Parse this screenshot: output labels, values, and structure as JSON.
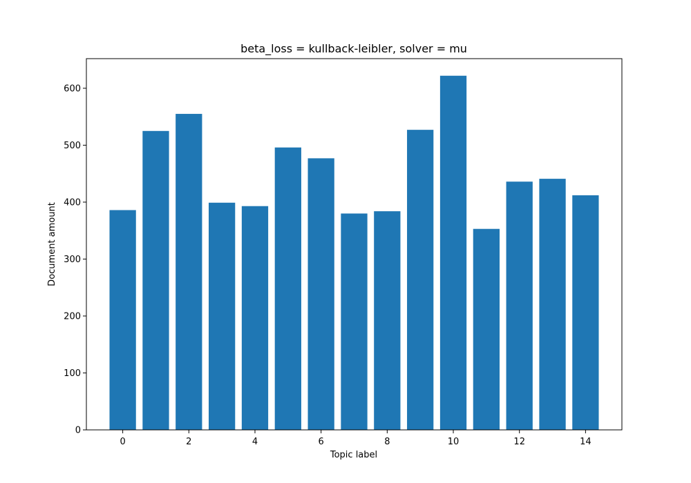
{
  "chart_data": {
    "type": "bar",
    "title": "beta_loss = kullback-leibler, solver = mu",
    "xlabel": "Topic label",
    "ylabel": "Document amount",
    "categories": [
      0,
      1,
      2,
      3,
      4,
      5,
      6,
      7,
      8,
      9,
      10,
      11,
      12,
      13,
      14
    ],
    "values": [
      386,
      525,
      555,
      399,
      393,
      496,
      477,
      380,
      384,
      527,
      622,
      353,
      436,
      441,
      412
    ],
    "x_ticks": [
      0,
      2,
      4,
      6,
      8,
      10,
      12,
      14
    ],
    "y_ticks": [
      0,
      100,
      200,
      300,
      400,
      500,
      600
    ],
    "xlim": [
      -1.1,
      15.1
    ],
    "ylim": [
      0,
      652
    ],
    "bar_color": "#1f77b4",
    "grid": false
  }
}
